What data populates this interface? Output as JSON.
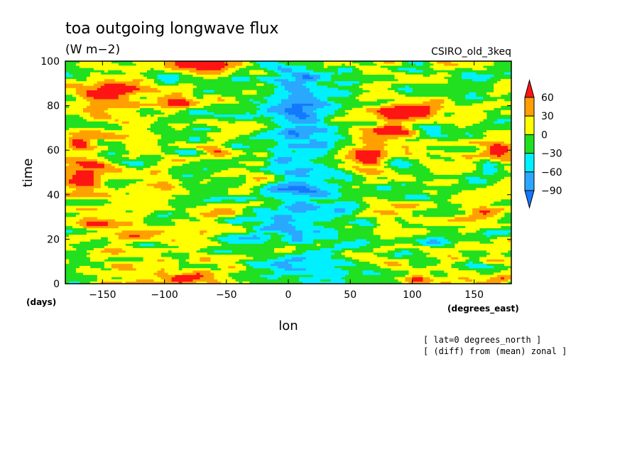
{
  "chart_data": {
    "type": "heatmap",
    "title": "toa outgoing longwave flux",
    "units": "(W m−2)",
    "model_label": "CSIRO_old_3keq",
    "xlabel": "lon",
    "ylabel": "time",
    "x_units": "(degrees_east)",
    "y_units": "(days)",
    "xlim": [
      -180,
      180
    ],
    "ylim": [
      0,
      100
    ],
    "x_ticks": [
      -150,
      -100,
      -50,
      0,
      50,
      100,
      150
    ],
    "x_tick_labels": [
      "−150",
      "−100",
      "−50",
      "0",
      "50",
      "100",
      "150"
    ],
    "y_ticks": [
      0,
      20,
      40,
      60,
      80,
      100
    ],
    "y_tick_labels": [
      "0",
      "20",
      "40",
      "60",
      "80",
      "100"
    ],
    "colorbar": {
      "levels": [
        -90,
        -60,
        -30,
        0,
        30,
        60
      ],
      "level_labels": [
        "−90",
        "−60",
        "−30",
        "0",
        "30",
        "60"
      ],
      "colors": [
        "#1478ff",
        "#2aa8ff",
        "#00f0ff",
        "#20e020",
        "#ffff00",
        "#ffa000",
        "#ff1414"
      ],
      "extend": "both"
    },
    "annotations": [
      "[ lat=0 degrees_north ]",
      "[ (diff) from (mean) zonal ]"
    ],
    "field_note": "Hovmöller diagram of anomaly values; low (cyan/blue) band centred near 0–30°E, high (red) patches near −150°, −80°, 60–90°E"
  }
}
